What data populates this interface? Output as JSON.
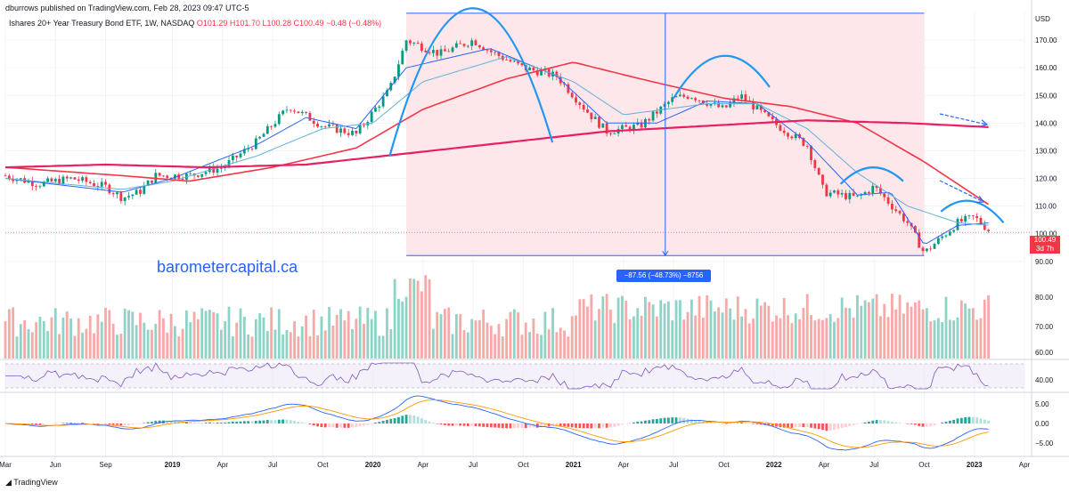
{
  "header": {
    "published": "dburrows published on TradingView.com, Feb 28, 2023 09:47 UTC-5",
    "symbol_desc": "Ishares 20+ Year Treasury Bond ETF, 1W, NASDAQ",
    "open": "O101.29",
    "high": "H101.70",
    "low": "L100.28",
    "close": "C100.49",
    "change": "−0.48 (−0.48%)"
  },
  "watermark": "barometercapital.ca",
  "footer_logo": "TradingView",
  "last_price": {
    "value": "100.49",
    "countdown": "3d 7h"
  },
  "measure_label": "−87.56 (−48.73%) −8756",
  "colors": {
    "up": "#089981",
    "down": "#f23645",
    "sma_fast": "#2962ff",
    "sma_mid": "#5db2d9",
    "sma_slow": "#f23645",
    "sma_200": "#e91e63",
    "arrow": "#2962ff",
    "arc": "#2196f3",
    "shade": "#fce4e6",
    "rsi": "#7e57c2",
    "macd_line": "#2962ff",
    "signal_line": "#ff9800"
  },
  "chart_data": {
    "type": "line",
    "title": "Ishares 20+ Year Treasury Bond ETF, 1W, NASDAQ",
    "currency_label": "USD",
    "x_ticks": [
      "Mar",
      "Jun",
      "Sep",
      "2019",
      "Apr",
      "Jul",
      "Oct",
      "2020",
      "Apr",
      "Jul",
      "Oct",
      "2021",
      "Apr",
      "Jul",
      "Oct",
      "2022",
      "Apr",
      "Jul",
      "Oct",
      "2023",
      "Apr"
    ],
    "x_range": [
      "2018-03",
      "2023-04"
    ],
    "price_axis": {
      "ticks": [
        90,
        100,
        110,
        120,
        130,
        140,
        150,
        160,
        170
      ],
      "labels": [
        "90.00",
        "100.00",
        "110.00",
        "120.00",
        "130.00",
        "140.00",
        "150.00",
        "160.00",
        "170.00"
      ],
      "ylim": [
        88,
        180
      ]
    },
    "volume_axis": {
      "labels": [
        "60.00",
        "70.00",
        "80.00"
      ]
    },
    "rsi_axis": {
      "labels": [
        "40.00"
      ]
    },
    "macd_axis": {
      "labels": [
        "5.00",
        "0.00",
        "−5.00"
      ]
    },
    "close_monthly": [
      {
        "date": "2018-03",
        "close": 121
      },
      {
        "date": "2018-05",
        "close": 118
      },
      {
        "date": "2018-07",
        "close": 120
      },
      {
        "date": "2018-09",
        "close": 117
      },
      {
        "date": "2018-10",
        "close": 113
      },
      {
        "date": "2018-11",
        "close": 115
      },
      {
        "date": "2018-12",
        "close": 121
      },
      {
        "date": "2019-02",
        "close": 121
      },
      {
        "date": "2019-04",
        "close": 124
      },
      {
        "date": "2019-06",
        "close": 133
      },
      {
        "date": "2019-08",
        "close": 146
      },
      {
        "date": "2019-10",
        "close": 139
      },
      {
        "date": "2019-12",
        "close": 136
      },
      {
        "date": "2020-02",
        "close": 152
      },
      {
        "date": "2020-03",
        "close": 170
      },
      {
        "date": "2020-05",
        "close": 165
      },
      {
        "date": "2020-07",
        "close": 170
      },
      {
        "date": "2020-08",
        "close": 166
      },
      {
        "date": "2020-10",
        "close": 160
      },
      {
        "date": "2020-12",
        "close": 157
      },
      {
        "date": "2021-02",
        "close": 143
      },
      {
        "date": "2021-03",
        "close": 137
      },
      {
        "date": "2021-05",
        "close": 139
      },
      {
        "date": "2021-07",
        "close": 149
      },
      {
        "date": "2021-08",
        "close": 150
      },
      {
        "date": "2021-10",
        "close": 145
      },
      {
        "date": "2021-11",
        "close": 150
      },
      {
        "date": "2022-01",
        "close": 140
      },
      {
        "date": "2022-03",
        "close": 132
      },
      {
        "date": "2022-04",
        "close": 115
      },
      {
        "date": "2022-06",
        "close": 113
      },
      {
        "date": "2022-07",
        "close": 117
      },
      {
        "date": "2022-09",
        "close": 104
      },
      {
        "date": "2022-10",
        "close": 93
      },
      {
        "date": "2022-12",
        "close": 104
      },
      {
        "date": "2023-01",
        "close": 106
      },
      {
        "date": "2023-02",
        "close": 100.49
      }
    ],
    "moving_averages": [
      {
        "name": "fast",
        "values": [
          {
            "date": "2018-03",
            "v": 120
          },
          {
            "date": "2018-10",
            "v": 115
          },
          {
            "date": "2019-01",
            "v": 120
          },
          {
            "date": "2019-06",
            "v": 132
          },
          {
            "date": "2019-09",
            "v": 142
          },
          {
            "date": "2019-12",
            "v": 138
          },
          {
            "date": "2020-03",
            "v": 160
          },
          {
            "date": "2020-08",
            "v": 167
          },
          {
            "date": "2020-12",
            "v": 157
          },
          {
            "date": "2021-03",
            "v": 140
          },
          {
            "date": "2021-06",
            "v": 140
          },
          {
            "date": "2021-09",
            "v": 148
          },
          {
            "date": "2021-12",
            "v": 147
          },
          {
            "date": "2022-03",
            "v": 133
          },
          {
            "date": "2022-06",
            "v": 114
          },
          {
            "date": "2022-08",
            "v": 115
          },
          {
            "date": "2022-10",
            "v": 96
          },
          {
            "date": "2022-12",
            "v": 103
          },
          {
            "date": "2023-02",
            "v": 104
          }
        ]
      },
      {
        "name": "mid",
        "values": [
          {
            "date": "2018-03",
            "v": 120
          },
          {
            "date": "2018-10",
            "v": 116
          },
          {
            "date": "2019-01",
            "v": 119
          },
          {
            "date": "2019-06",
            "v": 128
          },
          {
            "date": "2019-10",
            "v": 138
          },
          {
            "date": "2020-01",
            "v": 140
          },
          {
            "date": "2020-04",
            "v": 155
          },
          {
            "date": "2020-09",
            "v": 164
          },
          {
            "date": "2021-01",
            "v": 155
          },
          {
            "date": "2021-04",
            "v": 143
          },
          {
            "date": "2021-09",
            "v": 147
          },
          {
            "date": "2021-12",
            "v": 147
          },
          {
            "date": "2022-03",
            "v": 138
          },
          {
            "date": "2022-06",
            "v": 122
          },
          {
            "date": "2022-09",
            "v": 110
          },
          {
            "date": "2022-12",
            "v": 104
          },
          {
            "date": "2023-02",
            "v": 103
          }
        ]
      },
      {
        "name": "slow",
        "values": [
          {
            "date": "2018-03",
            "v": 124
          },
          {
            "date": "2018-10",
            "v": 121
          },
          {
            "date": "2019-02",
            "v": 119
          },
          {
            "date": "2019-07",
            "v": 124
          },
          {
            "date": "2019-12",
            "v": 131
          },
          {
            "date": "2020-04",
            "v": 145
          },
          {
            "date": "2020-09",
            "v": 156
          },
          {
            "date": "2021-01",
            "v": 162
          },
          {
            "date": "2021-05",
            "v": 156
          },
          {
            "date": "2021-10",
            "v": 149
          },
          {
            "date": "2022-02",
            "v": 146
          },
          {
            "date": "2022-06",
            "v": 140
          },
          {
            "date": "2022-10",
            "v": 126
          },
          {
            "date": "2023-02",
            "v": 110
          }
        ]
      },
      {
        "name": "sma200",
        "values": [
          {
            "date": "2018-03",
            "v": 124
          },
          {
            "date": "2018-09",
            "v": 125
          },
          {
            "date": "2019-03",
            "v": 124
          },
          {
            "date": "2019-09",
            "v": 125
          },
          {
            "date": "2020-03",
            "v": 129
          },
          {
            "date": "2020-09",
            "v": 133
          },
          {
            "date": "2021-03",
            "v": 137
          },
          {
            "date": "2021-09",
            "v": 139
          },
          {
            "date": "2022-03",
            "v": 141
          },
          {
            "date": "2022-09",
            "v": 140
          },
          {
            "date": "2023-02",
            "v": 138.5
          }
        ]
      }
    ],
    "measure": {
      "from_date": "2020-03",
      "to_date": "2022-10",
      "from_price": 179.7,
      "to_price": 92.1,
      "label": "−87.56 (−48.73%) −8756"
    },
    "shaded_range": {
      "from_date": "2020-03",
      "to_date": "2022-10"
    }
  }
}
